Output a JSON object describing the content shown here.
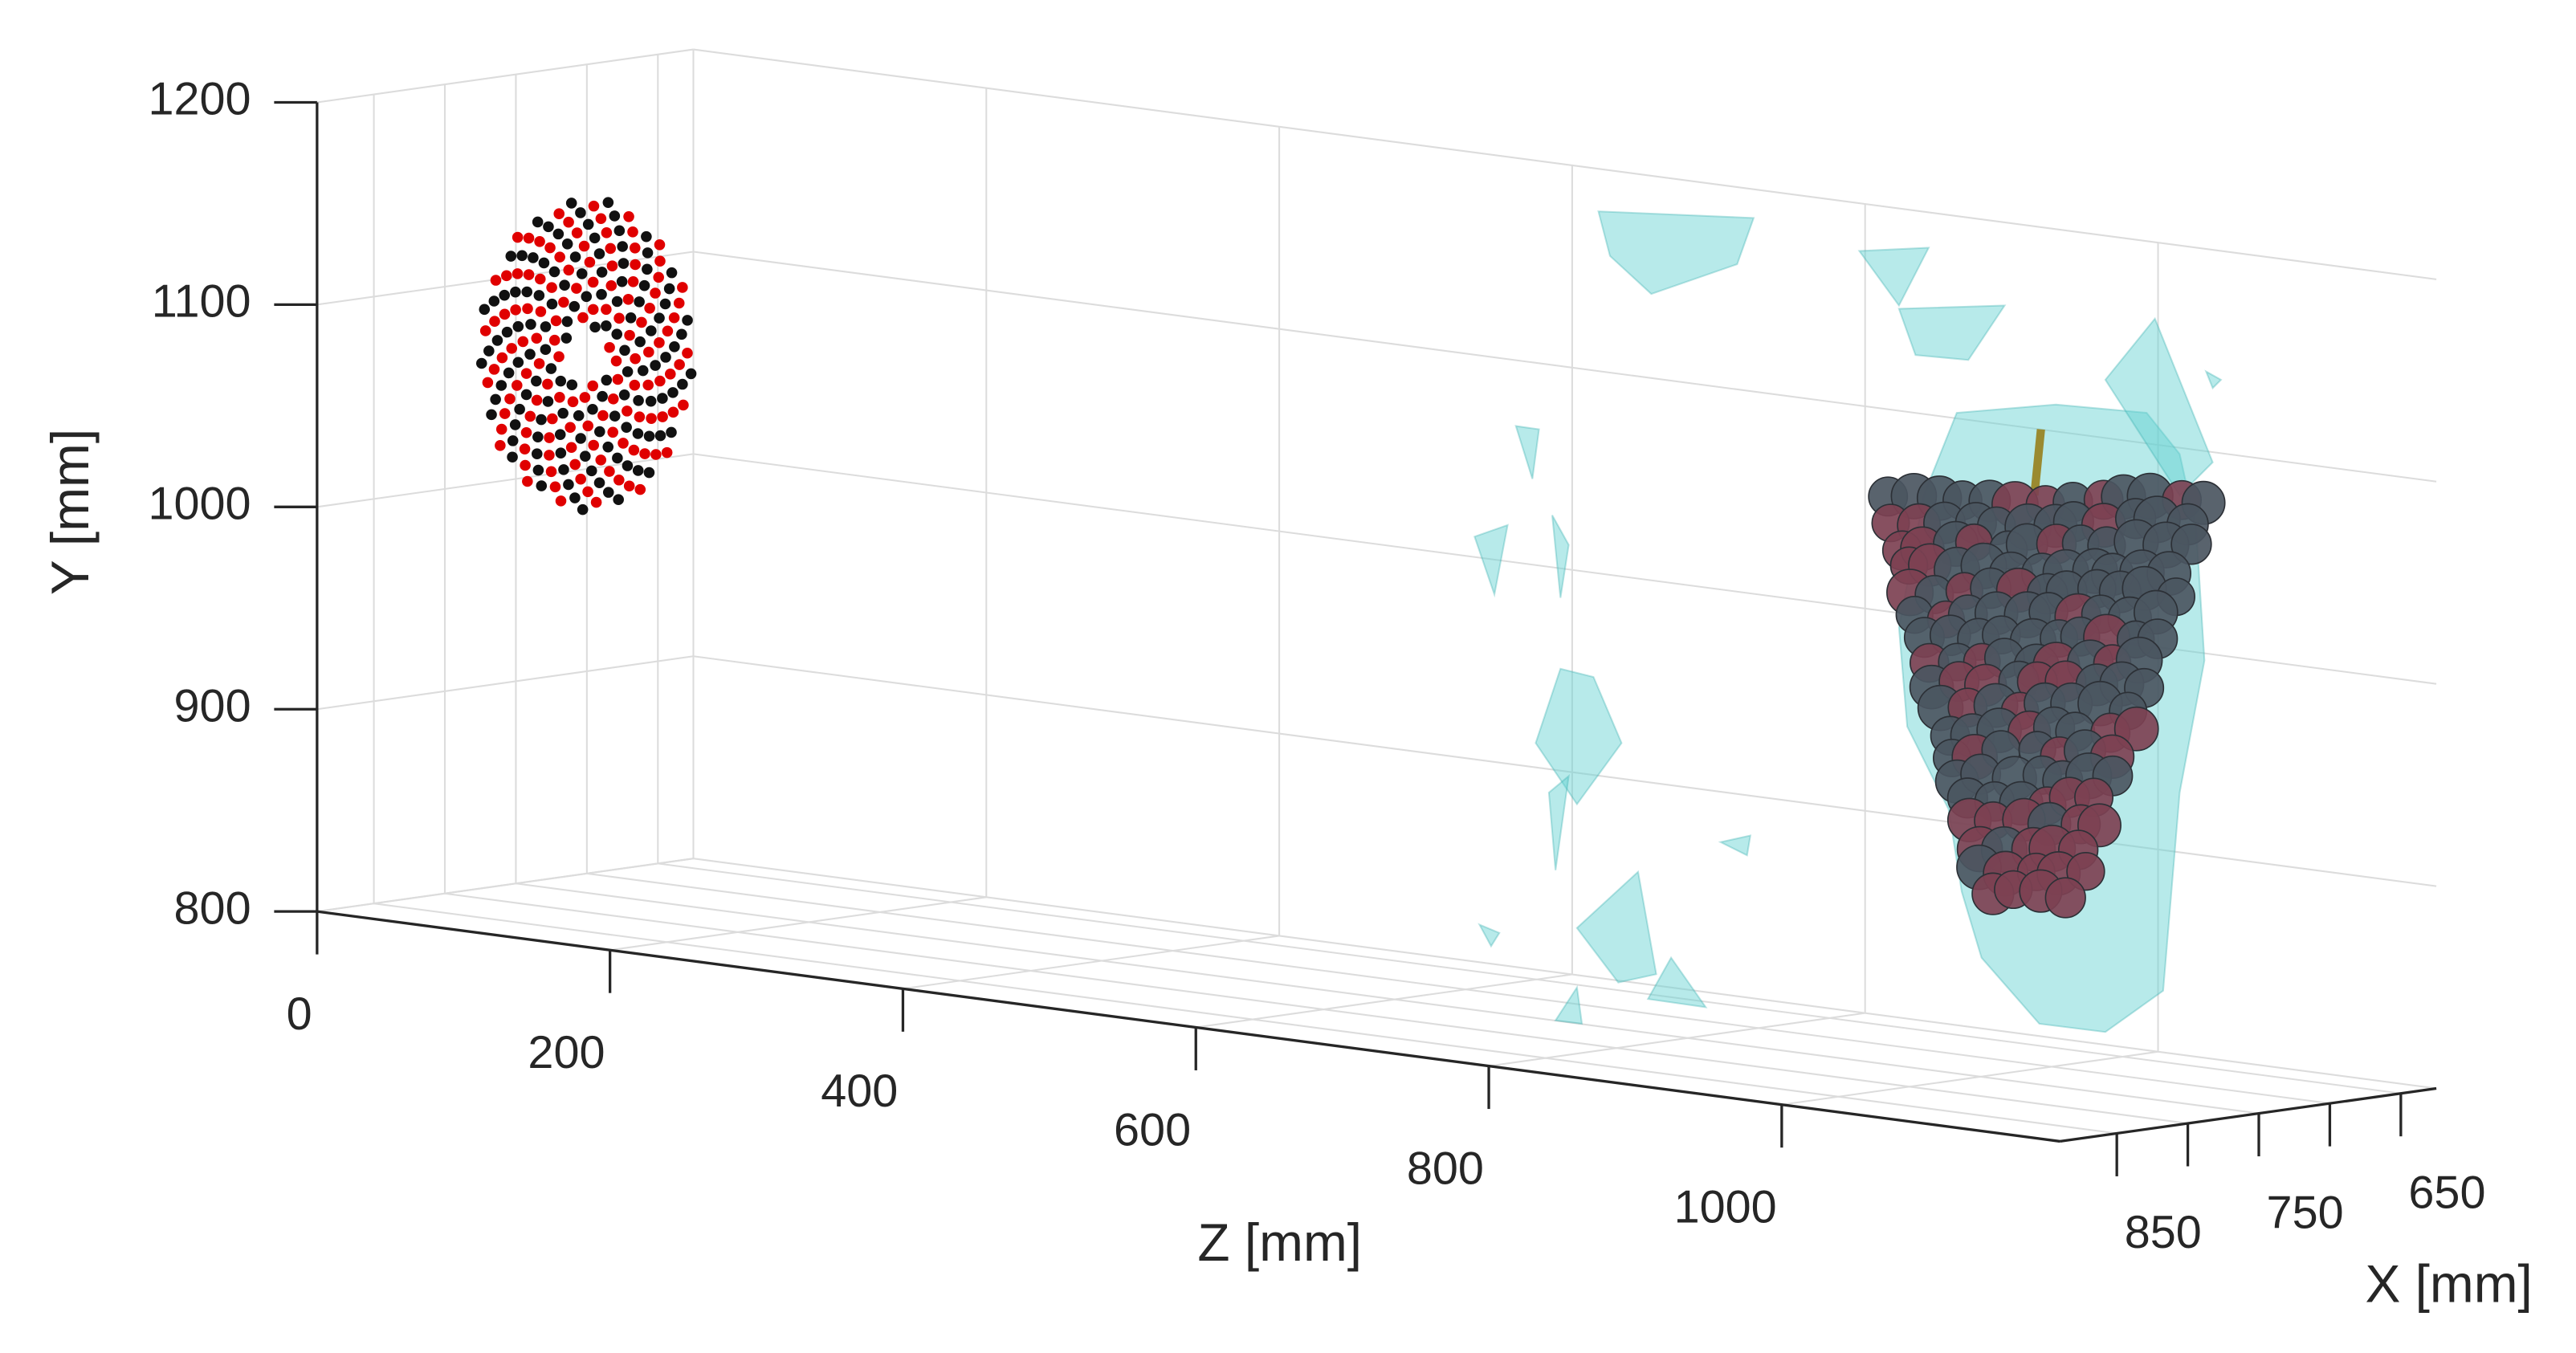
{
  "chart_data": {
    "type": "scatter3d",
    "xlabel": "X [mm]",
    "ylabel": "Y [mm]",
    "zlabel": "Z [mm]",
    "xlim": [
      625,
      890
    ],
    "ylim": [
      800,
      1200
    ],
    "zlim": [
      0,
      1190
    ],
    "xticks": [
      650,
      {
        "value": 700,
        "label": null
      },
      750,
      {
        "value": 800,
        "label": null
      },
      850
    ],
    "yticks": [
      800,
      900,
      1000,
      1100,
      1200
    ],
    "zticks": [
      0,
      200,
      400,
      600,
      800,
      1000
    ],
    "grid": true
  }
}
